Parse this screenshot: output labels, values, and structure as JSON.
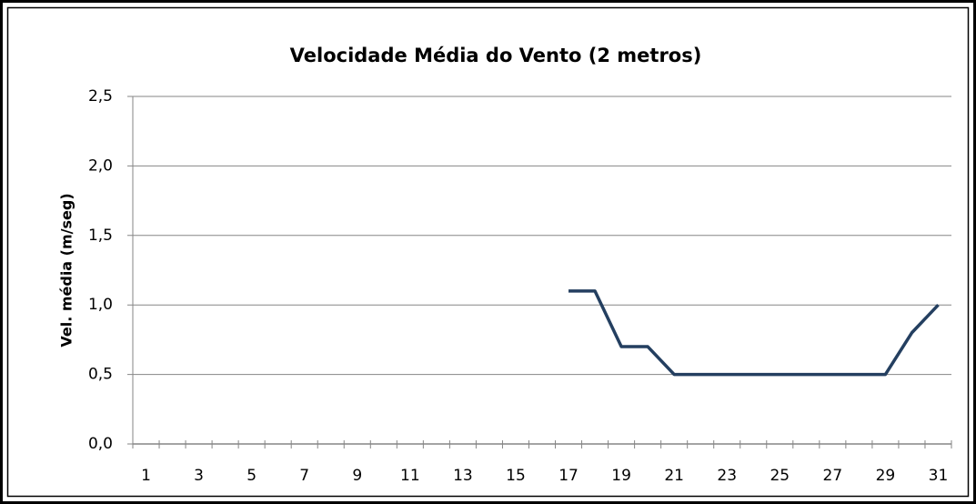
{
  "chart_data": {
    "type": "line",
    "title": "Velocidade Média do Vento (2  metros)",
    "y_label": "Vel. média (m/seg)",
    "categories": [
      1,
      null,
      3,
      null,
      5,
      null,
      7,
      null,
      9,
      null,
      11,
      null,
      13,
      null,
      15,
      null,
      17,
      null,
      19,
      null,
      21,
      null,
      23,
      null,
      25,
      null,
      27,
      null,
      29,
      null,
      31
    ],
    "series": [
      {
        "name": "Vel. média",
        "color": "#243f60",
        "values": [
          null,
          null,
          null,
          null,
          null,
          null,
          null,
          null,
          null,
          null,
          null,
          null,
          null,
          null,
          null,
          null,
          1.1,
          1.1,
          0.7,
          0.7,
          0.5,
          0.5,
          0.5,
          0.5,
          0.5,
          0.5,
          0.5,
          0.5,
          0.5,
          0.8,
          1.0
        ]
      }
    ],
    "ylim": [
      0,
      2.5
    ],
    "yticks": [
      {
        "value": 0,
        "label": "0,0"
      },
      {
        "value": 0.5,
        "label": "0,5"
      },
      {
        "value": 1,
        "label": "1,0"
      },
      {
        "value": 1.5,
        "label": "1,5"
      },
      {
        "value": 2,
        "label": "2,0"
      },
      {
        "value": 2.5,
        "label": "2,5"
      }
    ],
    "grid": true
  }
}
